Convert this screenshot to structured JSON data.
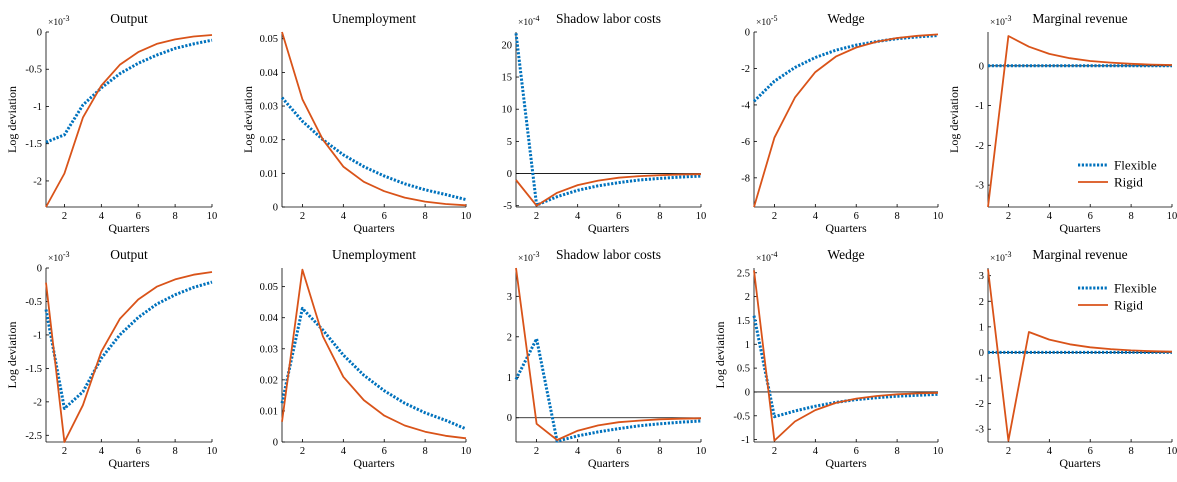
{
  "colors": {
    "flexible": "#0072BD",
    "rigid": "#D95319",
    "axis": "#000000"
  },
  "legend": {
    "flexible_label": "Flexible",
    "rigid_label": "Rigid",
    "placement": "bottom-right"
  },
  "chart_data": [
    {
      "type": "line",
      "title": "Output",
      "xlabel": "Quarters",
      "ylabel": "Log deviation",
      "exponent": "×10",
      "exponent_power": "-3",
      "xlim": [
        1,
        10
      ],
      "ylim": [
        -2.35,
        0
      ],
      "xticks": [
        2,
        4,
        6,
        8,
        10
      ],
      "xtick_labels": [
        "2",
        "4",
        "6",
        "8",
        "10"
      ],
      "yticks": [
        -2,
        -1.5,
        -1,
        -0.5,
        0
      ],
      "ytick_labels": [
        "-2",
        "-1.5",
        "-1",
        "-0.5",
        "0"
      ],
      "zero_line": false,
      "x": [
        1,
        2,
        3,
        4,
        5,
        6,
        7,
        8,
        9,
        10
      ],
      "series": [
        {
          "name": "Flexible",
          "values": [
            -1.48,
            -1.38,
            -0.98,
            -0.75,
            -0.56,
            -0.42,
            -0.31,
            -0.22,
            -0.16,
            -0.11
          ]
        },
        {
          "name": "Rigid",
          "values": [
            -2.35,
            -1.9,
            -1.15,
            -0.72,
            -0.44,
            -0.27,
            -0.16,
            -0.1,
            -0.06,
            -0.04
          ]
        }
      ]
    },
    {
      "type": "line",
      "title": "Unemployment",
      "xlabel": "Quarters",
      "ylabel": "Log deviation",
      "exponent": "",
      "exponent_power": "",
      "xlim": [
        1,
        10
      ],
      "ylim": [
        0,
        0.052
      ],
      "xticks": [
        2,
        4,
        6,
        8,
        10
      ],
      "xtick_labels": [
        "2",
        "4",
        "6",
        "8",
        "10"
      ],
      "yticks": [
        0,
        0.01,
        0.02,
        0.03,
        0.04,
        0.05
      ],
      "ytick_labels": [
        "0",
        "0.01",
        "0.02",
        "0.03",
        "0.04",
        "0.05"
      ],
      "zero_line": false,
      "x": [
        1,
        2,
        3,
        4,
        5,
        6,
        7,
        8,
        9,
        10
      ],
      "series": [
        {
          "name": "Flexible",
          "values": [
            0.0325,
            0.0255,
            0.02,
            0.0155,
            0.012,
            0.0092,
            0.0069,
            0.0051,
            0.0037,
            0.0022
          ]
        },
        {
          "name": "Rigid",
          "values": [
            0.052,
            0.032,
            0.02,
            0.012,
            0.0075,
            0.0047,
            0.0028,
            0.0016,
            0.0009,
            0.0005
          ]
        }
      ]
    },
    {
      "type": "line",
      "title": "Shadow labor costs",
      "xlabel": "Quarters",
      "ylabel": "",
      "exponent": "×10",
      "exponent_power": "-4",
      "xlim": [
        1,
        10
      ],
      "ylim": [
        -5.2,
        22
      ],
      "xticks": [
        2,
        4,
        6,
        8,
        10
      ],
      "xtick_labels": [
        "2",
        "4",
        "6",
        "8",
        "10"
      ],
      "yticks": [
        -5,
        0,
        5,
        10,
        15,
        20
      ],
      "ytick_labels": [
        "-5",
        "0",
        "5",
        "10",
        "15",
        "20"
      ],
      "zero_line": true,
      "x": [
        1,
        2,
        3,
        4,
        5,
        6,
        7,
        8,
        9,
        10
      ],
      "series": [
        {
          "name": "Flexible",
          "values": [
            21.8,
            -4.9,
            -3.6,
            -2.6,
            -1.9,
            -1.4,
            -1.0,
            -0.75,
            -0.55,
            -0.4
          ]
        },
        {
          "name": "Rigid",
          "values": [
            -1.0,
            -5.0,
            -3.0,
            -1.8,
            -1.1,
            -0.65,
            -0.4,
            -0.25,
            -0.15,
            -0.1
          ]
        }
      ]
    },
    {
      "type": "line",
      "title": "Wedge",
      "xlabel": "Quarters",
      "ylabel": "",
      "exponent": "×10",
      "exponent_power": "-5",
      "xlim": [
        1,
        10
      ],
      "ylim": [
        -9.6,
        0
      ],
      "xticks": [
        2,
        4,
        6,
        8,
        10
      ],
      "xtick_labels": [
        "2",
        "4",
        "6",
        "8",
        "10"
      ],
      "yticks": [
        -8,
        -6,
        -4,
        -2,
        0
      ],
      "ytick_labels": [
        "-8",
        "-6",
        "-4",
        "-2",
        "0"
      ],
      "zero_line": false,
      "x": [
        1,
        2,
        3,
        4,
        5,
        6,
        7,
        8,
        9,
        10
      ],
      "series": [
        {
          "name": "Flexible",
          "values": [
            -3.8,
            -2.7,
            -1.95,
            -1.4,
            -1.0,
            -0.72,
            -0.52,
            -0.37,
            -0.27,
            -0.19
          ]
        },
        {
          "name": "Rigid",
          "values": [
            -9.6,
            -5.8,
            -3.6,
            -2.2,
            -1.35,
            -0.85,
            -0.53,
            -0.33,
            -0.21,
            -0.13
          ]
        }
      ]
    },
    {
      "type": "line",
      "title": "Marginal revenue",
      "xlabel": "Quarters",
      "ylabel": "Log deviation",
      "exponent": "×10",
      "exponent_power": "-3",
      "xlim": [
        1,
        10
      ],
      "ylim": [
        -3.55,
        0.85
      ],
      "xticks": [
        2,
        4,
        6,
        8,
        10
      ],
      "xtick_labels": [
        "2",
        "4",
        "6",
        "8",
        "10"
      ],
      "yticks": [
        -3,
        -2,
        -1,
        0
      ],
      "ytick_labels": [
        "-3",
        "-2",
        "-1",
        "0"
      ],
      "zero_line": true,
      "legend": true,
      "x": [
        1,
        2,
        3,
        4,
        5,
        6,
        7,
        8,
        9,
        10
      ],
      "series": [
        {
          "name": "Flexible",
          "values": [
            0,
            0,
            0,
            0,
            0,
            0,
            0,
            0,
            0,
            0
          ]
        },
        {
          "name": "Rigid",
          "values": [
            -3.55,
            0.75,
            0.48,
            0.3,
            0.19,
            0.12,
            0.08,
            0.05,
            0.03,
            0.02
          ]
        }
      ]
    },
    {
      "type": "line",
      "title": "Output",
      "xlabel": "Quarters",
      "ylabel": "Log deviation",
      "exponent": "×10",
      "exponent_power": "-3",
      "xlim": [
        1,
        10
      ],
      "ylim": [
        -2.6,
        0
      ],
      "xticks": [
        2,
        4,
        6,
        8,
        10
      ],
      "xtick_labels": [
        "2",
        "4",
        "6",
        "8",
        "10"
      ],
      "yticks": [
        -2.5,
        -2,
        -1.5,
        -1,
        -0.5,
        0
      ],
      "ytick_labels": [
        "-2.5",
        "-2",
        "-1.5",
        "-1",
        "-0.5",
        "0"
      ],
      "zero_line": false,
      "x": [
        1,
        2,
        3,
        4,
        5,
        6,
        7,
        8,
        9,
        10
      ],
      "series": [
        {
          "name": "Flexible",
          "values": [
            -0.62,
            -2.1,
            -1.85,
            -1.35,
            -1.0,
            -0.74,
            -0.54,
            -0.4,
            -0.29,
            -0.21
          ]
        },
        {
          "name": "Rigid",
          "values": [
            -0.22,
            -2.6,
            -2.05,
            -1.25,
            -0.76,
            -0.47,
            -0.28,
            -0.17,
            -0.1,
            -0.06
          ]
        }
      ]
    },
    {
      "type": "line",
      "title": "Unemployment",
      "xlabel": "Quarters",
      "ylabel": "",
      "exponent": "",
      "exponent_power": "",
      "xlim": [
        1,
        10
      ],
      "ylim": [
        0,
        0.056
      ],
      "xticks": [
        2,
        4,
        6,
        8,
        10
      ],
      "xtick_labels": [
        "2",
        "4",
        "6",
        "8",
        "10"
      ],
      "yticks": [
        0,
        0.01,
        0.02,
        0.03,
        0.04,
        0.05
      ],
      "ytick_labels": [
        "0",
        "0.01",
        "0.02",
        "0.03",
        "0.04",
        "0.05"
      ],
      "zero_line": false,
      "x": [
        1,
        2,
        3,
        4,
        5,
        6,
        7,
        8,
        9,
        10
      ],
      "series": [
        {
          "name": "Flexible",
          "values": [
            0.0125,
            0.043,
            0.036,
            0.028,
            0.0215,
            0.0165,
            0.0125,
            0.0094,
            0.007,
            0.0042
          ]
        },
        {
          "name": "Rigid",
          "values": [
            0.0065,
            0.0555,
            0.034,
            0.021,
            0.0135,
            0.0085,
            0.0053,
            0.0033,
            0.002,
            0.0012
          ]
        }
      ]
    },
    {
      "type": "line",
      "title": "Shadow labor costs",
      "xlabel": "Quarters",
      "ylabel": "",
      "exponent": "×10",
      "exponent_power": "-3",
      "xlim": [
        1,
        10
      ],
      "ylim": [
        -0.6,
        3.7
      ],
      "xticks": [
        2,
        4,
        6,
        8,
        10
      ],
      "xtick_labels": [
        "2",
        "4",
        "6",
        "8",
        "10"
      ],
      "yticks": [
        0,
        1,
        2,
        3
      ],
      "ytick_labels": [
        "0",
        "1",
        "2",
        "3"
      ],
      "zero_line": true,
      "x": [
        1,
        2,
        3,
        4,
        5,
        6,
        7,
        8,
        9,
        10
      ],
      "series": [
        {
          "name": "Flexible",
          "values": [
            0.95,
            1.95,
            -0.58,
            -0.45,
            -0.35,
            -0.27,
            -0.2,
            -0.15,
            -0.11,
            -0.08
          ]
        },
        {
          "name": "Rigid",
          "values": [
            3.7,
            -0.15,
            -0.55,
            -0.32,
            -0.19,
            -0.11,
            -0.07,
            -0.04,
            -0.025,
            -0.015
          ]
        }
      ]
    },
    {
      "type": "line",
      "title": "Wedge",
      "xlabel": "Quarters",
      "ylabel": "Log deviation",
      "exponent": "×10",
      "exponent_power": "-4",
      "xlim": [
        1,
        10
      ],
      "ylim": [
        -1.05,
        2.6
      ],
      "xticks": [
        2,
        4,
        6,
        8,
        10
      ],
      "xtick_labels": [
        "2",
        "4",
        "6",
        "8",
        "10"
      ],
      "yticks": [
        -1,
        -0.5,
        0,
        0.5,
        1,
        1.5,
        2,
        2.5
      ],
      "ytick_labels": [
        "-1",
        "-0.5",
        "0",
        "0.5",
        "1",
        "1.5",
        "2",
        "2.5"
      ],
      "zero_line": true,
      "x": [
        1,
        2,
        3,
        4,
        5,
        6,
        7,
        8,
        9,
        10
      ],
      "series": [
        {
          "name": "Flexible",
          "values": [
            1.6,
            -0.52,
            -0.4,
            -0.3,
            -0.22,
            -0.16,
            -0.12,
            -0.09,
            -0.07,
            -0.05
          ]
        },
        {
          "name": "Rigid",
          "values": [
            2.55,
            -1.02,
            -0.62,
            -0.38,
            -0.23,
            -0.14,
            -0.085,
            -0.05,
            -0.03,
            -0.02
          ]
        }
      ]
    },
    {
      "type": "line",
      "title": "Marginal revenue",
      "xlabel": "Quarters",
      "ylabel": "",
      "exponent": "×10",
      "exponent_power": "-3",
      "xlim": [
        1,
        10
      ],
      "ylim": [
        -3.5,
        3.3
      ],
      "xticks": [
        2,
        4,
        6,
        8,
        10
      ],
      "xtick_labels": [
        "2",
        "4",
        "6",
        "8",
        "10"
      ],
      "yticks": [
        -3,
        -2,
        -1,
        0,
        1,
        2,
        3
      ],
      "ytick_labels": [
        "-3",
        "-2",
        "-1",
        "0",
        "1",
        "2",
        "3"
      ],
      "zero_line": true,
      "legend": true,
      "x": [
        1,
        2,
        3,
        4,
        5,
        6,
        7,
        8,
        9,
        10
      ],
      "series": [
        {
          "name": "Flexible",
          "values": [
            0,
            0,
            0,
            0,
            0,
            0,
            0,
            0,
            0,
            0
          ]
        },
        {
          "name": "Rigid",
          "values": [
            3.25,
            -3.45,
            0.8,
            0.5,
            0.32,
            0.2,
            0.13,
            0.08,
            0.05,
            0.03
          ]
        }
      ]
    }
  ]
}
